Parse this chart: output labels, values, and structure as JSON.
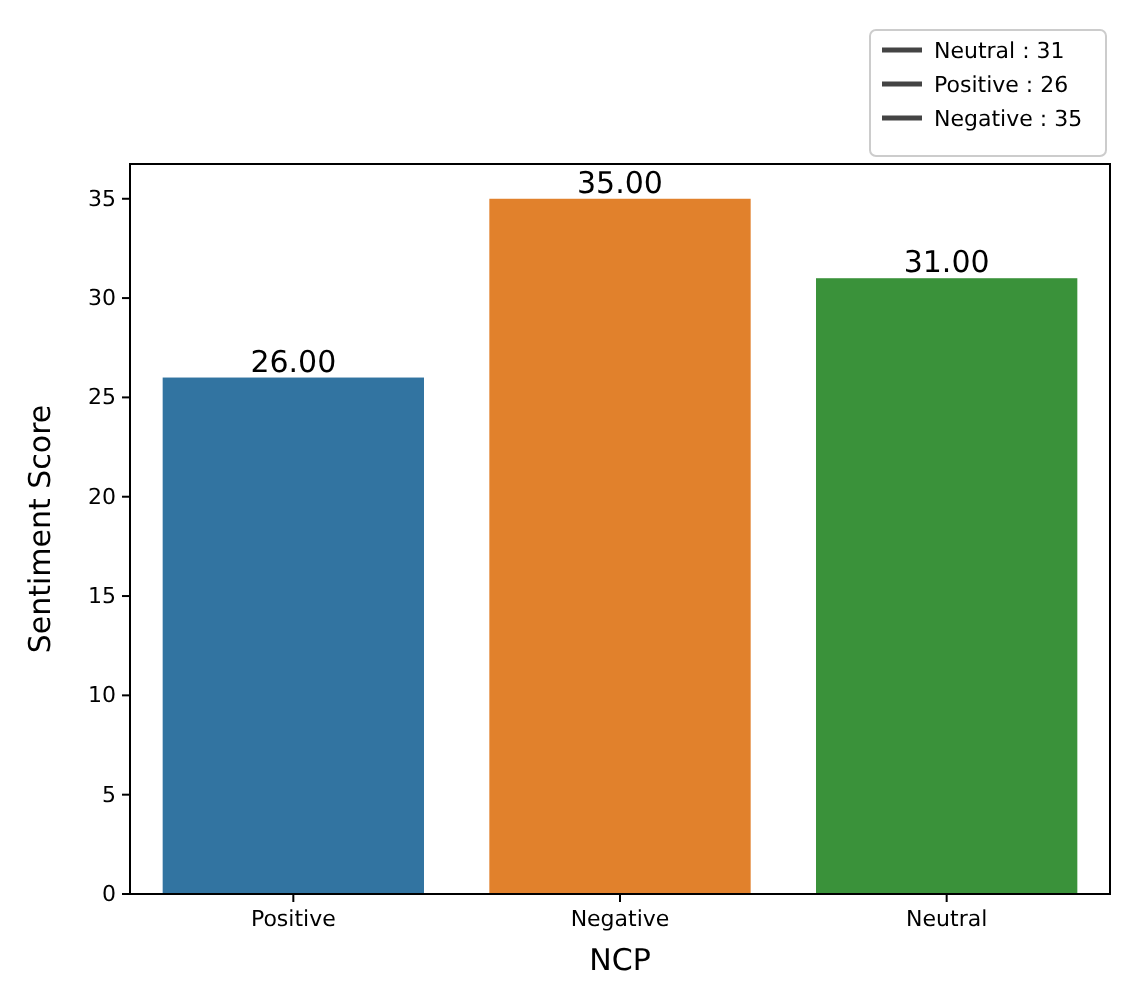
{
  "chart_data": {
    "type": "bar",
    "xlabel": "NCP",
    "ylabel": "Sentiment Score",
    "categories": [
      "Positive",
      "Negative",
      "Neutral"
    ],
    "values": [
      26,
      35,
      31
    ],
    "colors": [
      "#3274a1",
      "#e1812c",
      "#3a923a"
    ],
    "value_labels": [
      "26.00",
      "35.00",
      "31.00"
    ],
    "ylim": [
      0,
      36.75
    ],
    "yticks": [
      0,
      5,
      10,
      15,
      20,
      25,
      30,
      35
    ],
    "annotations": [
      "Neutral : 31",
      "Positive : 26",
      "Negative : 35"
    ]
  }
}
